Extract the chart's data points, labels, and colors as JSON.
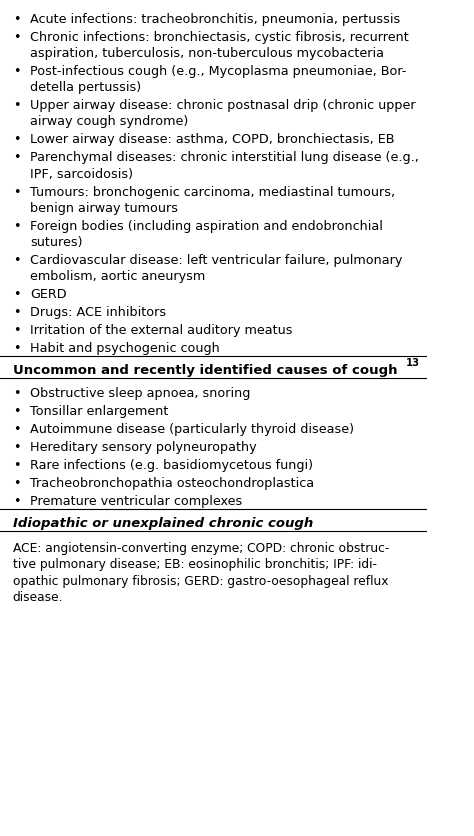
{
  "bg_color": "#ffffff",
  "text_color": "#000000",
  "bullet_items": [
    "Acute infections: tracheobronchitis, pneumonia, pertussis",
    "Chronic infections: bronchiectasis, cystic fibrosis, recurrent\naspiration, tuberculosis, non-tuberculous mycobacteria",
    "Post-infectious cough (e.g., Mycoplasma pneumoniae, Bor-\ndetella pertussis)",
    "Upper airway disease: chronic postnasal drip (chronic upper\nairway cough syndrome)",
    "Lower airway disease: asthma, COPD, bronchiectasis, EB",
    "Parenchymal diseases: chronic interstitial lung disease (e.g.,\nIPF, sarcoidosis)",
    "Tumours: bronchogenic carcinoma, mediastinal tumours,\nbenign airway tumours",
    "Foreign bodies (including aspiration and endobronchial\nsutures)",
    "Cardiovascular disease: left ventricular failure, pulmonary\nembolism, aortic aneurysm",
    "GERD",
    "Drugs: ACE inhibitors",
    "Irritation of the external auditory meatus",
    "Habit and psychogenic cough"
  ],
  "section2_header": "Uncommon and recently identified causes of cough",
  "section2_superscript": "13",
  "section2_items": [
    "Obstructive sleep apnoea, snoring",
    "Tonsillar enlargement",
    "Autoimmune disease (particularly thyroid disease)",
    "Hereditary sensory polyneuropathy",
    "Rare infections (e.g. basidiomycetous fungi)",
    "Tracheobronchopathia osteochondroplastica",
    "Premature ventricular complexes"
  ],
  "section3_header": "Idiopathic or unexplained chronic cough",
  "footnote": "ACE: angiotensin-converting enzyme; COPD: chronic obstruc-\ntive pulmonary disease; EB: eosinophilic bronchitis; IPF: idi-\nopathic pulmonary fibrosis; GERD: gastro-oesophageal reflux\ndisease.",
  "font_size": 9.2,
  "header_font_size": 9.5,
  "footnote_font_size": 8.8
}
